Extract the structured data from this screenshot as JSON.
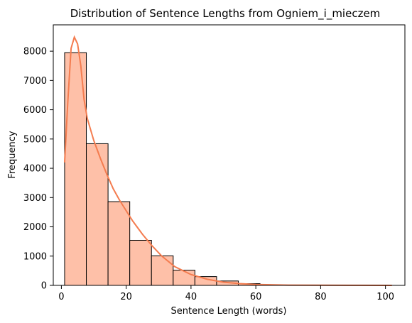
{
  "chart_data": {
    "type": "bar",
    "title": "Distribution of Sentence Lengths from Ogniem_i_mieczem",
    "xlabel": "Sentence Length (words)",
    "ylabel": "Frequency",
    "xlim": [
      -2.5,
      106
    ],
    "ylim": [
      0,
      8900
    ],
    "xticks": [
      0,
      20,
      40,
      60,
      80,
      100
    ],
    "yticks": [
      0,
      1000,
      2000,
      3000,
      4000,
      5000,
      6000,
      7000,
      8000
    ],
    "bins": [
      {
        "start": 1.0,
        "end": 7.7,
        "count": 7950
      },
      {
        "start": 7.7,
        "end": 14.4,
        "count": 4840
      },
      {
        "start": 14.4,
        "end": 21.1,
        "count": 2860
      },
      {
        "start": 21.1,
        "end": 27.8,
        "count": 1540
      },
      {
        "start": 27.8,
        "end": 34.5,
        "count": 1010
      },
      {
        "start": 34.5,
        "end": 41.2,
        "count": 520
      },
      {
        "start": 41.2,
        "end": 47.9,
        "count": 300
      },
      {
        "start": 47.9,
        "end": 54.6,
        "count": 150
      },
      {
        "start": 54.6,
        "end": 61.3,
        "count": 60
      },
      {
        "start": 61.3,
        "end": 68.0,
        "count": 20
      },
      {
        "start": 68.0,
        "end": 74.7,
        "count": 8
      },
      {
        "start": 74.7,
        "end": 81.4,
        "count": 4
      },
      {
        "start": 81.4,
        "end": 88.1,
        "count": 2
      },
      {
        "start": 88.1,
        "end": 94.8,
        "count": 1
      },
      {
        "start": 94.8,
        "end": 101.5,
        "count": 1
      }
    ],
    "kde": {
      "x": [
        1,
        2,
        3,
        4,
        5,
        6,
        7,
        8,
        10,
        12,
        14,
        16,
        18,
        20,
        22,
        25,
        28,
        31,
        35,
        40,
        45,
        50,
        55,
        60,
        70,
        80,
        90,
        102
      ],
      "y": [
        4200,
        6300,
        8100,
        8480,
        8250,
        7500,
        6350,
        5700,
        4950,
        4350,
        3800,
        3300,
        2900,
        2550,
        2200,
        1750,
        1350,
        1000,
        640,
        370,
        210,
        110,
        60,
        30,
        10,
        5,
        2,
        1
      ]
    },
    "bar_color": "#fec0a8",
    "edge_color": "#000000",
    "line_color": "#f47c4f",
    "grid": false
  }
}
